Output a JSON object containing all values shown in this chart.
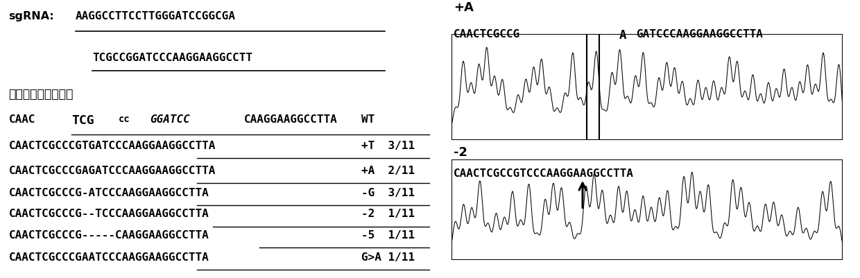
{
  "background_color": "#ffffff",
  "fig_width": 12.4,
  "fig_height": 4.02,
  "sgrna_label": "sgRNA:",
  "sgrna_line1": "AAGGCCTTCCTTGGGATCCGGCGA",
  "sgrna_line2": "TCGCCGGATCCCAAGGAAGGCCTT",
  "mutation_header": "突变类型及其比例：",
  "panel_top_label": "+A",
  "panel_top_seq_pre": "CAACTCGCCG",
  "panel_top_seq_ins": "A",
  "panel_top_seq_post": "GATCCCAAGGAAGGCCTTA",
  "panel_bottom_label": "-2",
  "panel_bottom_seq": "CAACTCGCCGTCCCAAGGAAGGCCTTA"
}
